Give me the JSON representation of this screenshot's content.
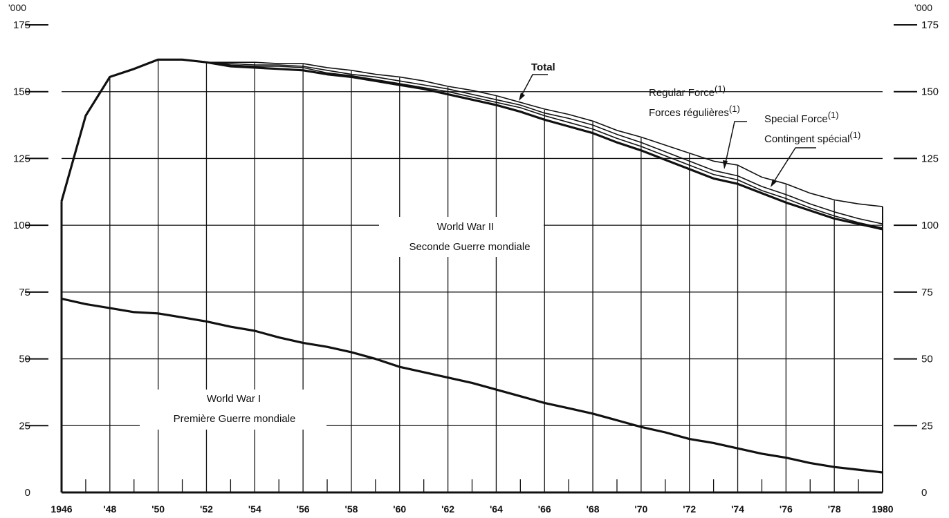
{
  "chart_data": {
    "type": "line",
    "units_label": "'000",
    "xlim": [
      1946,
      1980
    ],
    "ylim": [
      0,
      175
    ],
    "y_ticks": [
      0,
      25,
      50,
      75,
      100,
      125,
      150,
      175
    ],
    "x_tick_labels": [
      {
        "x": 1946,
        "label": "1946"
      },
      {
        "x": 1948,
        "label": "'48"
      },
      {
        "x": 1950,
        "label": "'50"
      },
      {
        "x": 1952,
        "label": "'52"
      },
      {
        "x": 1954,
        "label": "'54"
      },
      {
        "x": 1956,
        "label": "'56"
      },
      {
        "x": 1958,
        "label": "'58"
      },
      {
        "x": 1960,
        "label": "'60"
      },
      {
        "x": 1962,
        "label": "'62"
      },
      {
        "x": 1964,
        "label": "'64"
      },
      {
        "x": 1966,
        "label": "'66"
      },
      {
        "x": 1968,
        "label": "'68"
      },
      {
        "x": 1970,
        "label": "'70"
      },
      {
        "x": 1972,
        "label": "'72"
      },
      {
        "x": 1974,
        "label": "'74"
      },
      {
        "x": 1976,
        "label": "'76"
      },
      {
        "x": 1978,
        "label": "'78"
      },
      {
        "x": 1980,
        "label": "1980"
      }
    ],
    "x": [
      1946,
      1947,
      1948,
      1949,
      1950,
      1951,
      1952,
      1953,
      1954,
      1955,
      1956,
      1957,
      1958,
      1959,
      1960,
      1961,
      1962,
      1963,
      1964,
      1965,
      1966,
      1967,
      1968,
      1969,
      1970,
      1971,
      1972,
      1973,
      1974,
      1975,
      1976,
      1977,
      1978,
      1979,
      1980
    ],
    "series": [
      {
        "name": "World War I / Première Guerre mondiale",
        "values": [
          72.5,
          70.5,
          69,
          67.5,
          67,
          65.5,
          64,
          62,
          60.5,
          58,
          56,
          54.5,
          52.5,
          50,
          47,
          45,
          43,
          41,
          38.5,
          36,
          33.5,
          31.5,
          29.5,
          27,
          24.5,
          22.5,
          20,
          18.5,
          16.5,
          14.5,
          13,
          11,
          9.5,
          8.5,
          7.5
        ]
      },
      {
        "name": "World War II / Seconde Guerre mondiale",
        "values": [
          109,
          141,
          155.5,
          158.5,
          162,
          162,
          161,
          159.5,
          159,
          158.5,
          158,
          156.5,
          155.5,
          154,
          152.5,
          151,
          149,
          147,
          145,
          142.5,
          139.5,
          137,
          134.5,
          131,
          128,
          124.5,
          121,
          117.5,
          115.5,
          112,
          108.5,
          105.5,
          102.5,
          100.5,
          98.5
        ]
      },
      {
        "name": "Special Force(1) / Contingent spécial(1)",
        "values": [
          109,
          141,
          155.5,
          158.5,
          162,
          162,
          161,
          160,
          159.5,
          159.5,
          159,
          157,
          156,
          154.5,
          153,
          151.5,
          150,
          148,
          146,
          144,
          141,
          138.5,
          136,
          132.5,
          129.5,
          126,
          122.5,
          119,
          117,
          113,
          110,
          106.5,
          103.5,
          101,
          99
        ]
      },
      {
        "name": "Regular Force(1) / Forces régulières(1)",
        "values": [
          109,
          141,
          155.5,
          158.5,
          162,
          162,
          161,
          160.5,
          160,
          160,
          159.5,
          158,
          156.5,
          155.5,
          154,
          152.5,
          151,
          149,
          147,
          145,
          142,
          140,
          137.5,
          134,
          131,
          127.5,
          124,
          120.5,
          118.5,
          114.5,
          111.5,
          108,
          105,
          102.5,
          100.5
        ]
      },
      {
        "name": "Total",
        "values": [
          109,
          141,
          155.5,
          158.5,
          162,
          162,
          161,
          161,
          161,
          160.5,
          160.5,
          159,
          158,
          156.5,
          155.5,
          154,
          152,
          150.5,
          148.5,
          146,
          143.5,
          141.5,
          139,
          135.5,
          133,
          130,
          127,
          124,
          122.5,
          118,
          115.5,
          112,
          109.5,
          108,
          107
        ]
      }
    ],
    "grid": true,
    "region_labels": {
      "ww2_line1": "World War II",
      "ww2_line2": "Seconde Guerre mondiale",
      "ww1_line1": "World War I",
      "ww1_line2": "Première Guerre mondiale"
    },
    "series_labels": {
      "total": "Total",
      "regular_en": "Regular Force",
      "regular_fr": "Forces régulières",
      "special_en": "Special Force",
      "special_fr": "Contingent spécial",
      "footnote_mark": "(1)"
    }
  }
}
